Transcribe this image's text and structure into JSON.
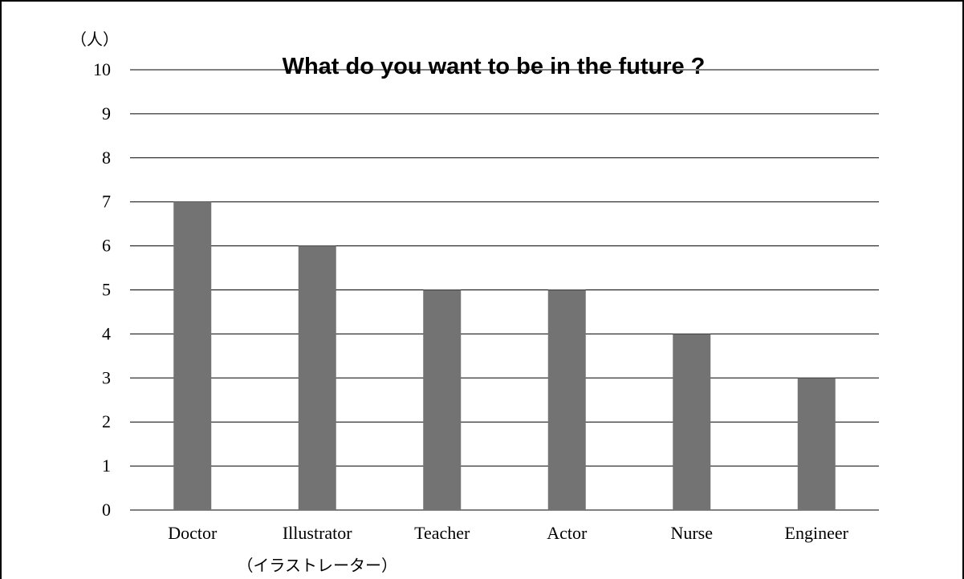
{
  "chart_data": {
    "type": "bar",
    "title": "What do you want to be in the future ?",
    "ylabel": "（人）",
    "xlabel": "",
    "categories": [
      "Doctor",
      "Illustrator",
      "Teacher",
      "Actor",
      "Nurse",
      "Engineer"
    ],
    "category_sublabels": [
      "",
      "（イラストレーター）",
      "",
      "",
      "",
      ""
    ],
    "values": [
      7,
      6,
      5,
      5,
      4,
      3
    ],
    "ylim": [
      0,
      10
    ],
    "yticks": [
      "0",
      "1",
      "2",
      "3",
      "4",
      "5",
      "6",
      "7",
      "8",
      "9",
      "10"
    ],
    "grid": true,
    "legend": "none",
    "bar_color": "#737373",
    "gridline_color": "#000000"
  }
}
